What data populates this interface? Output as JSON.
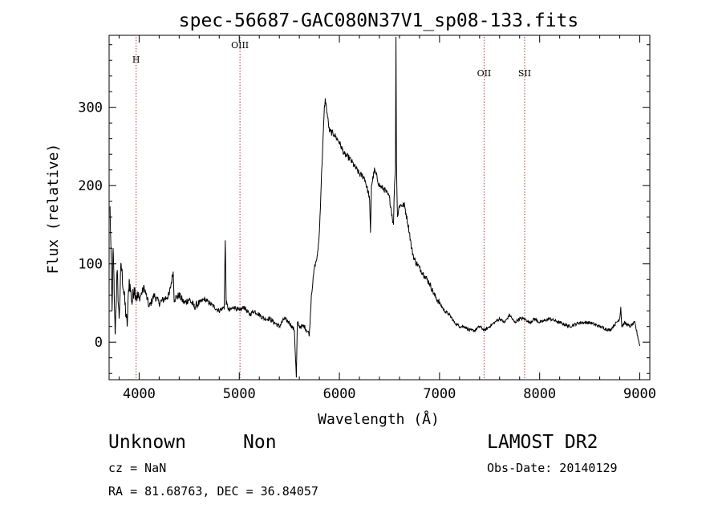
{
  "chart_data": {
    "type": "line",
    "title": "spec-56687-GAC080N37V1_sp08-133.fits",
    "xlabel": "Wavelength (Å)",
    "ylabel": "Flux (relative)",
    "xlim": [
      3700,
      9100
    ],
    "ylim": [
      -48,
      392
    ],
    "x_ticks": [
      4000,
      5000,
      6000,
      7000,
      8000,
      9000
    ],
    "x_tick_labels": [
      "4000",
      "5000",
      "6000",
      "7000",
      "8000",
      "9000"
    ],
    "y_ticks": [
      0,
      100,
      200,
      300
    ],
    "y_tick_labels": [
      "0",
      "100",
      "200",
      "300"
    ],
    "grid": false,
    "lines": [
      {
        "label": "H",
        "x": 3970
      },
      {
        "label": "OIII",
        "x": 5007
      },
      {
        "label": "OII",
        "x": 7445
      },
      {
        "label": "SII",
        "x": 7850
      }
    ],
    "line_color": "#b03a3a",
    "series": [
      {
        "x": [
          3710,
          3720,
          3730,
          3740,
          3750,
          3760,
          3780,
          3800,
          3820,
          3850,
          3880,
          3900,
          3930,
          3950,
          3970,
          4000,
          4050,
          4100,
          4150,
          4200,
          4250,
          4300,
          4340,
          4350,
          4400,
          4450,
          4500,
          4550,
          4600,
          4650,
          4700,
          4750,
          4800,
          4850,
          4860,
          4870,
          4900,
          4950,
          5000,
          5050,
          5100,
          5150,
          5200,
          5250,
          5300,
          5350,
          5400,
          5450,
          5500,
          5550,
          5570,
          5580,
          5600,
          5650,
          5700,
          5720,
          5750,
          5780,
          5800,
          5820,
          5840,
          5850,
          5860,
          5880,
          5900,
          5950,
          6000,
          6050,
          6100,
          6150,
          6200,
          6250,
          6300,
          6310,
          6320,
          6350,
          6400,
          6450,
          6500,
          6540,
          6550,
          6560,
          6565,
          6570,
          6580,
          6600,
          6650,
          6700,
          6720,
          6750,
          6800,
          6850,
          6900,
          6950,
          7000,
          7050,
          7100,
          7150,
          7200,
          7250,
          7300,
          7350,
          7400,
          7450,
          7500,
          7550,
          7600,
          7650,
          7700,
          7750,
          7800,
          7850,
          7900,
          7950,
          8000,
          8100,
          8200,
          8300,
          8400,
          8500,
          8600,
          8700,
          8800,
          8810,
          8820,
          8850,
          8900,
          8950,
          9000
        ],
        "y": [
          170,
          110,
          40,
          120,
          70,
          10,
          90,
          30,
          100,
          60,
          20,
          80,
          50,
          70,
          60,
          55,
          70,
          45,
          60,
          50,
          55,
          60,
          90,
          55,
          60,
          50,
          55,
          45,
          50,
          55,
          50,
          45,
          40,
          45,
          130,
          50,
          40,
          45,
          40,
          45,
          35,
          40,
          35,
          30,
          30,
          25,
          20,
          30,
          25,
          15,
          -45,
          25,
          20,
          20,
          10,
          60,
          95,
          110,
          140,
          210,
          270,
          300,
          310,
          290,
          270,
          265,
          255,
          240,
          235,
          225,
          215,
          210,
          185,
          140,
          200,
          220,
          200,
          195,
          185,
          150,
          200,
          220,
          390,
          230,
          160,
          175,
          175,
          140,
          120,
          105,
          95,
          85,
          75,
          60,
          50,
          40,
          35,
          25,
          20,
          20,
          15,
          15,
          20,
          15,
          20,
          25,
          30,
          25,
          35,
          25,
          30,
          30,
          25,
          30,
          25,
          30,
          25,
          20,
          25,
          25,
          20,
          15,
          30,
          45,
          20,
          25,
          20,
          25,
          -5
        ]
      }
    ]
  },
  "footer": {
    "object_class": "Unknown",
    "object_subclass": "Non",
    "survey": "LAMOST DR2",
    "cz": "cz = NaN",
    "obs_date": "Obs-Date: 20140129",
    "coords": "RA =  81.68763, DEC =  36.84057"
  }
}
